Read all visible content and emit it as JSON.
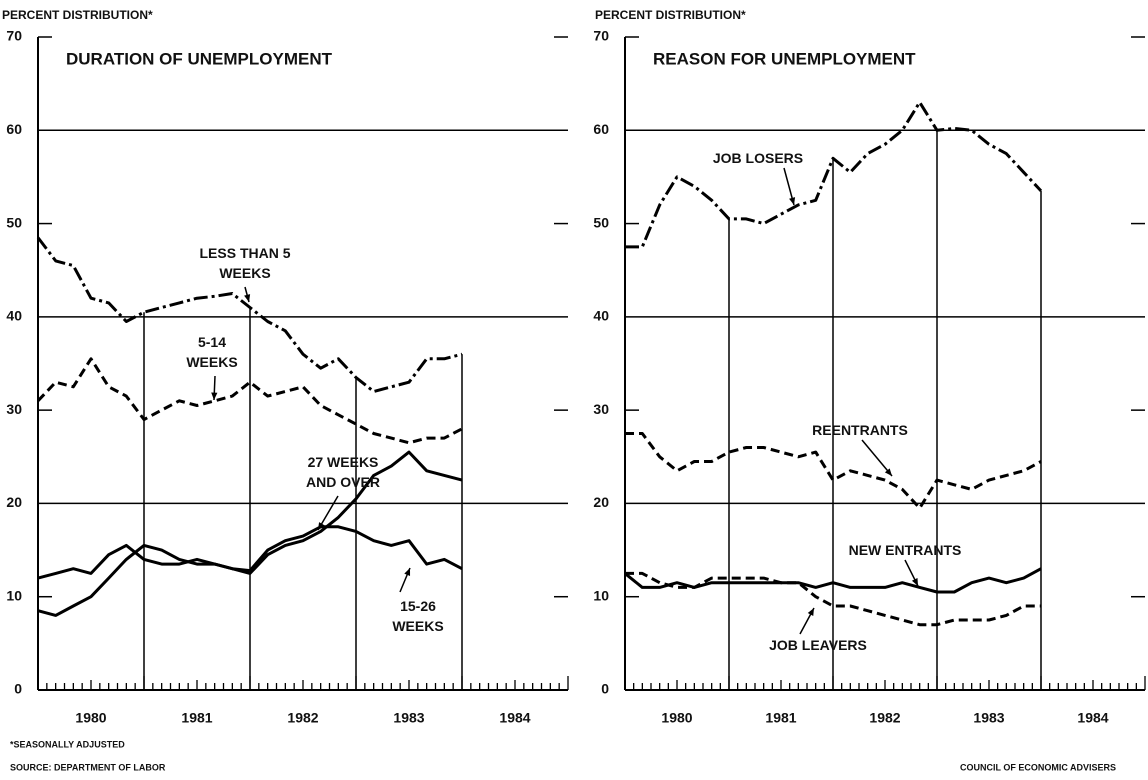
{
  "chart_data": [
    {
      "type": "line",
      "title": "DURATION OF UNEMPLOYMENT",
      "y_label": "PERCENT DISTRIBUTION*",
      "x": [
        0,
        2,
        4,
        6,
        8,
        10,
        12,
        14,
        16,
        18,
        20,
        22,
        24,
        26,
        28,
        30,
        32,
        34,
        36,
        38,
        40,
        42,
        44,
        46,
        48
      ],
      "xlim": [
        0,
        60
      ],
      "xticks": [
        {
          "value": 6,
          "label": "1980"
        },
        {
          "value": 18,
          "label": "1981"
        },
        {
          "value": 30,
          "label": "1982"
        },
        {
          "value": 42,
          "label": "1983"
        },
        {
          "value": 54,
          "label": "1984"
        }
      ],
      "ylim": [
        0,
        70
      ],
      "yticks": [
        0,
        10,
        20,
        30,
        40,
        50,
        60,
        70
      ],
      "grid": "alternate",
      "series": [
        {
          "name": "LESS THAN 5 WEEKS",
          "color": "#000000",
          "style": "dashdot",
          "values": [
            48.5,
            46,
            45.5,
            42,
            41.5,
            39.5,
            40.5,
            41,
            41.5,
            42,
            42.2,
            42.5,
            41,
            39.5,
            38.5,
            36,
            34.5,
            35.5,
            33.5,
            32,
            32.5,
            33,
            35.5,
            35.5,
            36
          ]
        },
        {
          "name": "5-14 WEEKS",
          "color": "#000000",
          "style": "dashed",
          "values": [
            31,
            33,
            32.5,
            35.5,
            32.5,
            31.5,
            29,
            30,
            31,
            30.5,
            31,
            31.5,
            33,
            31.5,
            32,
            32.5,
            30.5,
            29.5,
            28.5,
            27.5,
            27,
            26.5,
            27,
            27,
            28
          ]
        },
        {
          "name": "27 WEEKS AND OVER",
          "color": "#000000",
          "style": "solid",
          "values": [
            8.5,
            8,
            9,
            10,
            12,
            14,
            15.5,
            15,
            14,
            13.5,
            13.5,
            13,
            12.5,
            14.5,
            15.5,
            16,
            17,
            18.5,
            20.5,
            23,
            24,
            25.5,
            23.5,
            23,
            22.5
          ]
        },
        {
          "name": "15-26 WEEKS",
          "color": "#000000",
          "style": "solid",
          "values": [
            12,
            12.5,
            13,
            12.5,
            14.5,
            15.5,
            14,
            13.5,
            13.5,
            14,
            13.5,
            13,
            12.8,
            15,
            16,
            16.5,
            17.5,
            17.5,
            17,
            16,
            15.5,
            16,
            13.5,
            14,
            13
          ]
        }
      ]
    },
    {
      "type": "line",
      "title": "REASON FOR UNEMPLOYMENT",
      "y_label": "PERCENT DISTRIBUTION*",
      "x": [
        0,
        2,
        4,
        6,
        8,
        10,
        12,
        14,
        16,
        18,
        20,
        22,
        24,
        26,
        28,
        30,
        32,
        34,
        36,
        38,
        40,
        42,
        44,
        46,
        48
      ],
      "xlim": [
        0,
        60
      ],
      "xticks": [
        {
          "value": 6,
          "label": "1980"
        },
        {
          "value": 18,
          "label": "1981"
        },
        {
          "value": 30,
          "label": "1982"
        },
        {
          "value": 42,
          "label": "1983"
        },
        {
          "value": 54,
          "label": "1984"
        }
      ],
      "ylim": [
        0,
        70
      ],
      "yticks": [
        0,
        10,
        20,
        30,
        40,
        50,
        60,
        70
      ],
      "grid": "alternate",
      "series": [
        {
          "name": "JOB LOSERS",
          "color": "#000000",
          "style": "dashdot",
          "values": [
            47.5,
            47.5,
            52,
            55,
            54,
            52.5,
            50.5,
            50.5,
            50,
            51,
            52,
            52.5,
            57,
            55.5,
            57.5,
            58.5,
            60,
            63,
            60,
            60.2,
            60,
            58.5,
            57.5,
            55.5,
            53.5
          ]
        },
        {
          "name": "REENTRANTS",
          "color": "#000000",
          "style": "dashed",
          "values": [
            27.5,
            27.5,
            25,
            23.5,
            24.5,
            24.5,
            25.5,
            26,
            26,
            25.5,
            25,
            25.5,
            22.5,
            23.5,
            23,
            22.5,
            21.5,
            19.5,
            22.5,
            22,
            21.5,
            22.5,
            23,
            23.5,
            24.5
          ]
        },
        {
          "name": "NEW ENTRANTS",
          "color": "#000000",
          "style": "solid",
          "values": [
            12.5,
            11,
            11,
            11.5,
            11,
            11.5,
            11.5,
            11.5,
            11.5,
            11.5,
            11.5,
            11,
            11.5,
            11,
            11,
            11,
            11.5,
            11,
            10.5,
            10.5,
            11.5,
            12,
            11.5,
            12,
            13
          ]
        },
        {
          "name": "JOB LEAVERS",
          "color": "#000000",
          "style": "dashed",
          "values": [
            12.5,
            12.5,
            11.5,
            11,
            11,
            12,
            12,
            12,
            12,
            11.5,
            11.5,
            10,
            9,
            9,
            8.5,
            8,
            7.5,
            7,
            7,
            7.5,
            7.5,
            7.5,
            8,
            9,
            9
          ]
        }
      ]
    }
  ],
  "footnote": "*SEASONALLY ADJUSTED",
  "source": "SOURCE: DEPARTMENT OF LABOR",
  "credit": "COUNCIL OF ECONOMIC ADVISERS"
}
